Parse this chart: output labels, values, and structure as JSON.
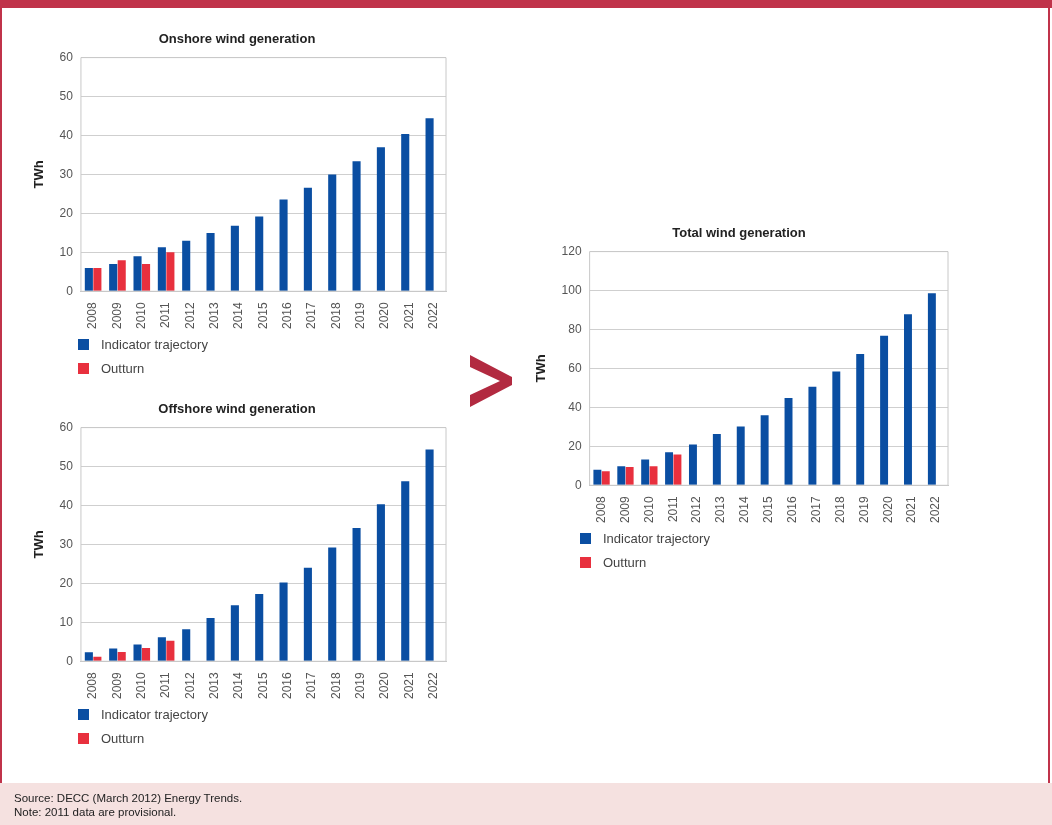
{
  "chart_data": [
    {
      "type": "bar",
      "title": "Onshore wind generation",
      "ylabel": "TWh",
      "categories": [
        "2008",
        "2009",
        "2010",
        "2011",
        "2012",
        "2013",
        "2014",
        "2015",
        "2016",
        "2017",
        "2018",
        "2019",
        "2020",
        "2021",
        "2022"
      ],
      "series": [
        {
          "name": "Indicator trajectory",
          "color": "#0a4ea2",
          "values": [
            6,
            7,
            9,
            11.3,
            13,
            15,
            16.8,
            19.2,
            23.6,
            26.6,
            30,
            33.4,
            37,
            40.4,
            44.4
          ]
        },
        {
          "name": "Outturn",
          "color": "#e8303e",
          "values": [
            6,
            8,
            7,
            10,
            null,
            null,
            null,
            null,
            null,
            null,
            null,
            null,
            null,
            null,
            null
          ]
        }
      ],
      "ylim": [
        0,
        60
      ],
      "yticks": [
        0,
        10,
        20,
        30,
        40,
        50,
        60
      ],
      "grid": "y",
      "legend": "bottom"
    },
    {
      "type": "bar",
      "title": "Offshore wind generation",
      "ylabel": "TWh",
      "categories": [
        "2008",
        "2009",
        "2010",
        "2011",
        "2012",
        "2013",
        "2014",
        "2015",
        "2016",
        "2017",
        "2018",
        "2019",
        "2020",
        "2021",
        "2022"
      ],
      "series": [
        {
          "name": "Indicator trajectory",
          "color": "#0a4ea2",
          "values": [
            2.3,
            3.3,
            4.3,
            6.2,
            8.2,
            11.1,
            14.4,
            17.3,
            20.2,
            24,
            29.2,
            34.2,
            40.3,
            46.2,
            54.4
          ]
        },
        {
          "name": "Outturn",
          "color": "#e8303e",
          "values": [
            1.2,
            2.4,
            3.4,
            5.3,
            null,
            null,
            null,
            null,
            null,
            null,
            null,
            null,
            null,
            null,
            null
          ]
        }
      ],
      "ylim": [
        0,
        60
      ],
      "yticks": [
        0,
        10,
        20,
        30,
        40,
        50,
        60
      ],
      "grid": "y",
      "legend": "bottom"
    },
    {
      "type": "bar",
      "title": "Total wind generation",
      "ylabel": "TWh",
      "categories": [
        "2008",
        "2009",
        "2010",
        "2011",
        "2012",
        "2013",
        "2014",
        "2015",
        "2016",
        "2017",
        "2018",
        "2019",
        "2020",
        "2021",
        "2022"
      ],
      "series": [
        {
          "name": "Indicator trajectory",
          "color": "#0a4ea2",
          "values": [
            8,
            9.8,
            13.2,
            17,
            21,
            26.4,
            30.2,
            36,
            44.8,
            50.6,
            58.4,
            67.4,
            76.8,
            87.8,
            98.6
          ]
        },
        {
          "name": "Outturn",
          "color": "#e8303e",
          "values": [
            7.2,
            9.4,
            9.8,
            15.8,
            null,
            null,
            null,
            null,
            null,
            null,
            null,
            null,
            null,
            null,
            null
          ]
        }
      ],
      "ylim": [
        0,
        120
      ],
      "yticks": [
        0,
        20,
        40,
        60,
        80,
        100,
        120
      ],
      "grid": "y",
      "legend": "bottom",
      "annotations": [
        "Source: DECC (March 2012) Energy Trends.",
        "Note: 2011 data are provisional."
      ]
    }
  ]
}
